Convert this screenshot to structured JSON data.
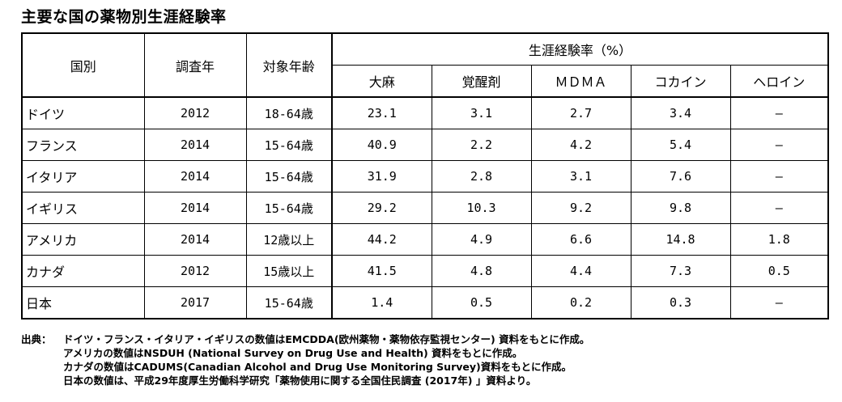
{
  "title": "主要な国の薬物別生涯経験率",
  "headers": {
    "country": "国別",
    "year": "調査年",
    "age": "対象年齢",
    "group": "生涯経験率（%）",
    "drugs": [
      "大麻",
      "覚醒剤",
      "ＭＤＭＡ",
      "コカイン",
      "ヘロイン"
    ]
  },
  "rows": [
    {
      "country": "ドイツ",
      "year": "2012",
      "age": "18-64歳",
      "values": [
        "23.1",
        "3.1",
        "2.7",
        "3.4",
        "—"
      ]
    },
    {
      "country": "フランス",
      "year": "2014",
      "age": "15-64歳",
      "values": [
        "40.9",
        "2.2",
        "4.2",
        "5.4",
        "—"
      ]
    },
    {
      "country": "イタリア",
      "year": "2014",
      "age": "15-64歳",
      "values": [
        "31.9",
        "2.8",
        "3.1",
        "7.6",
        "—"
      ]
    },
    {
      "country": "イギリス",
      "year": "2014",
      "age": "15-64歳",
      "values": [
        "29.2",
        "10.3",
        "9.2",
        "9.8",
        "—"
      ]
    },
    {
      "country": "アメリカ",
      "year": "2014",
      "age": "12歳以上",
      "values": [
        "44.2",
        "4.9",
        "6.6",
        "14.8",
        "1.8"
      ]
    },
    {
      "country": "カナダ",
      "year": "2012",
      "age": "15歳以上",
      "values": [
        "41.5",
        "4.8",
        "4.4",
        "7.3",
        "0.5"
      ]
    },
    {
      "country": "日本",
      "year": "2017",
      "age": "15-64歳",
      "values": [
        "1.4",
        "0.5",
        "0.2",
        "0.3",
        "—"
      ]
    }
  ],
  "source": {
    "label": "出典：",
    "lines": [
      "ドイツ・フランス・イタリア・イギリスの数値はEMCDDA(欧州薬物・薬物依存監視センター) 資料をもとに作成。",
      "アメリカの数値はNSDUH (National Survey on Drug Use and Health) 資料をもとに作成。",
      "カナダの数値はCADUMS(Canadian Alcohol and Drug Use Monitoring Survey)資料をもとに作成。",
      "日本の数値は、平成29年度厚生労働科学研究「薬物使用に関する全国住民調査 (2017年) 」資料より。"
    ]
  }
}
